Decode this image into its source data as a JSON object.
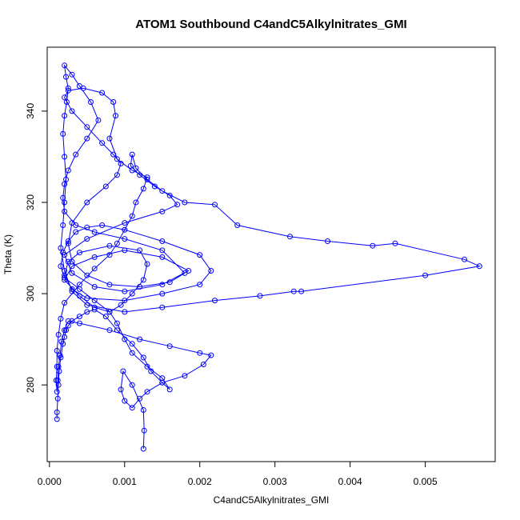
{
  "chart_data": {
    "type": "scatter",
    "title": "ATOM1 Southbound C4andC5Alkylnitrates_GMI",
    "xlabel": "C4andC5Alkylnitrates_GMI",
    "ylabel": "Theta (K)",
    "xlim": [
      -3e-05,
      0.00593
    ],
    "ylim": [
      263.2,
      354.0
    ],
    "x_ticks": [
      0.0,
      0.001,
      0.002,
      0.003,
      0.004,
      0.005
    ],
    "x_tick_labels": [
      "0.000",
      "0.001",
      "0.002",
      "0.003",
      "0.004",
      "0.005"
    ],
    "y_ticks": [
      280,
      300,
      320,
      340
    ],
    "y_tick_labels": [
      "280",
      "300",
      "320",
      "340"
    ],
    "grid": false,
    "legend": "none",
    "connected": true,
    "color": "#0000ff",
    "series": [
      {
        "x": [
          0.0001,
          0.0001,
          0.00011,
          0.00012,
          0.00013,
          0.00015,
          0.00018,
          0.0002,
          0.00022,
          0.00025,
          0.0003,
          0.0004,
          0.0005,
          0.0006,
          0.00075,
          0.0009,
          0.0011,
          0.00125,
          0.00135,
          0.0015,
          0.0016,
          0.0015,
          0.0013,
          0.0011,
          0.001,
          0.0009,
          0.0008,
          0.0006,
          0.0004,
          0.0002,
          0.00015,
          0.00018,
          0.00025,
          0.00035,
          0.0005,
          0.0007,
          0.001,
          0.0015,
          0.002,
          0.00215,
          0.002,
          0.0015,
          0.001,
          0.0005,
          0.0003,
          0.0002,
          0.00025,
          0.0004,
          0.0008,
          0.0012,
          0.0013,
          0.00125,
          0.0011,
          0.00095,
          0.0008,
          0.0006,
          0.0004,
          0.0002,
          0.0003,
          0.0006,
          0.001,
          0.0015,
          0.00185,
          0.0015,
          0.001,
          0.0006,
          0.0003,
          0.0002,
          0.0005,
          0.001,
          0.0015,
          0.0017,
          0.0016,
          0.0014,
          0.0012,
          0.00108,
          0.0011,
          0.00115,
          0.0013,
          0.0015,
          0.0018,
          0.0022,
          0.0025,
          0.0032,
          0.0037,
          0.0043,
          0.0046,
          0.00552,
          0.00572,
          0.005,
          0.00335,
          0.00325,
          0.0028,
          0.0022,
          0.0015,
          0.001,
          0.0005,
          0.0003,
          0.0002,
          0.00015,
          0.00018,
          0.0002,
          0.00022,
          0.0002,
          0.00018,
          0.0002,
          0.00023,
          0.00025,
          0.00022,
          0.0002,
          0.0003,
          0.0004,
          0.00055,
          0.00065,
          0.0005,
          0.00035,
          0.00025,
          0.0002,
          0.00018,
          0.0002,
          0.00035,
          0.0006,
          0.001,
          0.0015,
          0.0018,
          0.0016,
          0.0012,
          0.0008,
          0.0005,
          0.0003,
          0.00025,
          0.0003,
          0.0005,
          0.00075,
          0.0009,
          0.00095,
          0.00085,
          0.0007,
          0.0005,
          0.0003,
          0.0002,
          0.00025,
          0.00045,
          0.0007,
          0.00085,
          0.00088,
          0.0008,
          0.0009,
          0.0011,
          0.0013,
          0.00125,
          0.00115,
          0.0011,
          0.001,
          0.0009,
          0.0008,
          0.0006,
          0.0004,
          0.0002,
          0.00015,
          0.00012,
          0.0001,
          0.0001,
          9e-05,
          0.0001,
          0.00011,
          0.00012,
          0.00014,
          0.00016,
          0.0002,
          0.00025,
          0.0004,
          0.0008,
          0.0012,
          0.0016,
          0.002,
          0.00215,
          0.00205,
          0.0018,
          0.0015,
          0.0013,
          0.0012,
          0.0011,
          0.001,
          0.00095,
          0.00098,
          0.0011,
          0.00125,
          0.00126,
          0.00125
        ],
        "y": [
          272.5,
          274.0,
          277.0,
          280.0,
          283.0,
          286.0,
          289.0,
          290.5,
          292.0,
          293.0,
          294.0,
          295.0,
          296.0,
          296.5,
          295.0,
          292.0,
          289.0,
          286.0,
          283.0,
          280.5,
          279.0,
          281.5,
          284.0,
          287.0,
          290.0,
          293.5,
          296.0,
          298.5,
          301.0,
          303.5,
          306.0,
          309.0,
          311.5,
          313.5,
          314.5,
          315.0,
          314.0,
          311.5,
          308.5,
          305.0,
          302.0,
          300.0,
          298.5,
          299.0,
          301.0,
          304.0,
          307.0,
          309.0,
          310.5,
          309.5,
          306.5,
          303.0,
          300.0,
          297.5,
          296.0,
          297.0,
          299.5,
          303.0,
          306.0,
          308.0,
          309.5,
          308.0,
          305.0,
          302.0,
          300.5,
          301.5,
          304.5,
          308.5,
          312.0,
          315.5,
          318.0,
          319.5,
          321.5,
          323.5,
          326.0,
          328.0,
          330.5,
          327.5,
          325.0,
          322.5,
          320.0,
          319.5,
          315.0,
          312.5,
          311.5,
          310.5,
          311.0,
          307.5,
          306.0,
          304.0,
          300.5,
          300.5,
          299.5,
          298.5,
          297.0,
          296.0,
          297.5,
          300.5,
          305.0,
          310.0,
          315.0,
          320.0,
          325.0,
          330.0,
          335.0,
          339.0,
          342.0,
          345.0,
          347.5,
          350.0,
          348.0,
          345.5,
          342.0,
          338.0,
          334.0,
          330.5,
          327.0,
          324.0,
          321.0,
          318.0,
          315.0,
          313.5,
          312.0,
          309.5,
          304.5,
          302.5,
          301.5,
          302.0,
          304.0,
          307.0,
          311.0,
          315.5,
          320.0,
          323.5,
          326.0,
          328.5,
          330.5,
          333.0,
          336.5,
          340.0,
          343.0,
          344.5,
          345.0,
          344.0,
          342.0,
          339.0,
          334.0,
          329.5,
          327.0,
          325.5,
          323.0,
          320.0,
          317.0,
          314.0,
          311.0,
          308.5,
          305.5,
          302.0,
          298.0,
          294.5,
          291.0,
          287.5,
          284.0,
          281.0,
          278.5,
          281.0,
          284.0,
          286.5,
          289.5,
          292.0,
          294.0,
          293.5,
          292.0,
          290.0,
          288.5,
          287.0,
          286.5,
          284.5,
          282.0,
          280.5,
          278.5,
          277.0,
          275.0,
          276.5,
          279.0,
          283.0,
          280.0,
          274.5,
          270.0,
          266.0
        ]
      }
    ]
  }
}
